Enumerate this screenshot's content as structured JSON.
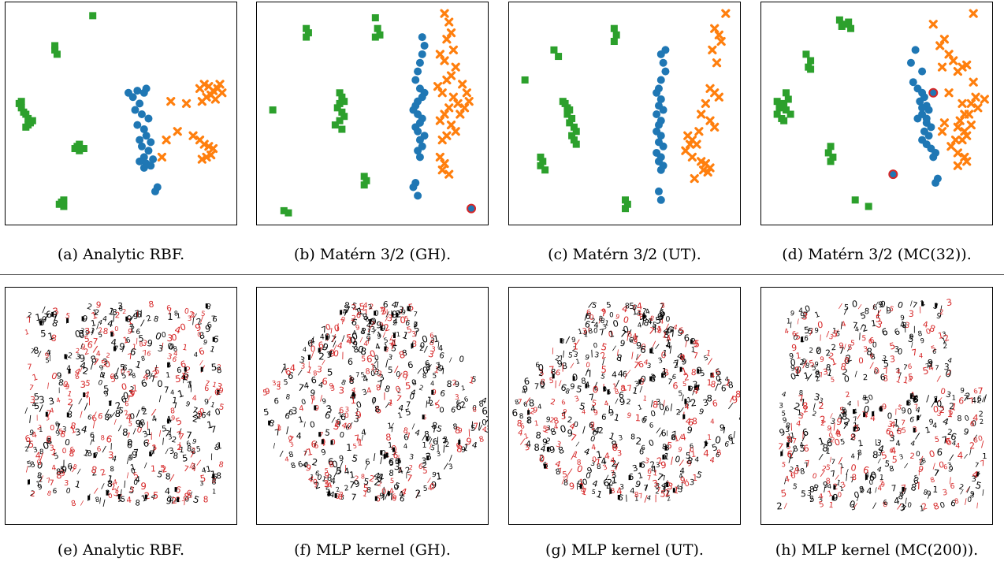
{
  "captions": {
    "a": "(a) Analytic RBF.",
    "b": "(b) Matérn 3/2 (GH).",
    "c": "(c) Matérn 3/2 (UT).",
    "d": "(d) Matérn 3/2 (MC(32)).",
    "e": "(e) Analytic RBF.",
    "f": "(f) MLP kernel (GH).",
    "g": "(g) MLP kernel (UT).",
    "h": "(h) MLP kernel (MC(200))."
  },
  "colors": {
    "green": "#2ca02c",
    "blue": "#1f77b4",
    "orange": "#ff7f0e",
    "red": "#d62728",
    "black": "#000000"
  },
  "chart_data": [
    {
      "type": "scatter",
      "panel": "a",
      "title": "",
      "xlabel": "",
      "ylabel": "",
      "xlim": [
        0,
        1
      ],
      "ylim": [
        0,
        1
      ],
      "series": [
        {
          "marker": "square",
          "color": "green",
          "x": [
            0.37,
            0.2,
            0.2,
            0.21,
            0.04,
            0.05,
            0.06,
            0.07,
            0.08,
            0.09,
            0.1,
            0.05,
            0.08,
            0.07,
            0.31,
            0.29,
            0.3,
            0.31,
            0.33,
            0.24,
            0.22,
            0.24,
            0.23
          ],
          "y": [
            0.96,
            0.82,
            0.8,
            0.78,
            0.55,
            0.53,
            0.51,
            0.5,
            0.48,
            0.46,
            0.47,
            0.56,
            0.45,
            0.44,
            0.36,
            0.34,
            0.35,
            0.33,
            0.34,
            0.1,
            0.08,
            0.07,
            0.09
          ]
        },
        {
          "marker": "circle",
          "color": "blue",
          "x": [
            0.53,
            0.55,
            0.57,
            0.6,
            0.61,
            0.58,
            0.56,
            0.59,
            0.62,
            0.57,
            0.6,
            0.61,
            0.58,
            0.63,
            0.59,
            0.62,
            0.6,
            0.58,
            0.61,
            0.64,
            0.6,
            0.63,
            0.66,
            0.65
          ],
          "y": [
            0.6,
            0.58,
            0.61,
            0.6,
            0.62,
            0.55,
            0.52,
            0.5,
            0.48,
            0.45,
            0.43,
            0.4,
            0.38,
            0.37,
            0.35,
            0.33,
            0.3,
            0.28,
            0.27,
            0.29,
            0.25,
            0.26,
            0.16,
            0.14
          ]
        },
        {
          "marker": "x",
          "color": "orange",
          "x": [
            0.85,
            0.87,
            0.89,
            0.91,
            0.93,
            0.95,
            0.88,
            0.9,
            0.92,
            0.86,
            0.94,
            0.79,
            0.72,
            0.75,
            0.82,
            0.85,
            0.87,
            0.89,
            0.91,
            0.88,
            0.9,
            0.86,
            0.68,
            0.7
          ],
          "y": [
            0.62,
            0.64,
            0.63,
            0.61,
            0.62,
            0.6,
            0.58,
            0.59,
            0.57,
            0.56,
            0.64,
            0.55,
            0.56,
            0.42,
            0.4,
            0.38,
            0.36,
            0.35,
            0.34,
            0.3,
            0.31,
            0.29,
            0.3,
            0.38
          ]
        }
      ]
    },
    {
      "type": "scatter",
      "panel": "b",
      "title": "",
      "xlabel": "",
      "ylabel": "",
      "xlim": [
        0,
        1
      ],
      "ylim": [
        0,
        1
      ],
      "series": [
        {
          "marker": "square",
          "color": "green",
          "x": [
            0.2,
            0.21,
            0.2,
            0.51,
            0.52,
            0.53,
            0.51,
            0.35,
            0.36,
            0.37,
            0.35,
            0.34,
            0.36,
            0.37,
            0.35,
            0.33,
            0.36,
            0.05,
            0.46,
            0.47,
            0.46,
            0.1,
            0.12
          ],
          "y": [
            0.9,
            0.88,
            0.86,
            0.95,
            0.9,
            0.87,
            0.86,
            0.6,
            0.58,
            0.56,
            0.55,
            0.53,
            0.51,
            0.49,
            0.47,
            0.45,
            0.43,
            0.52,
            0.21,
            0.19,
            0.17,
            0.05,
            0.04
          ]
        },
        {
          "marker": "circle",
          "color": "blue",
          "x": [
            0.72,
            0.73,
            0.72,
            0.71,
            0.7,
            0.69,
            0.71,
            0.73,
            0.72,
            0.7,
            0.69,
            0.68,
            0.7,
            0.72,
            0.71,
            0.69,
            0.7,
            0.73,
            0.71,
            0.72,
            0.7,
            0.71,
            0.69,
            0.68,
            0.7
          ],
          "y": [
            0.86,
            0.82,
            0.78,
            0.74,
            0.7,
            0.66,
            0.62,
            0.6,
            0.58,
            0.56,
            0.54,
            0.52,
            0.5,
            0.48,
            0.46,
            0.44,
            0.42,
            0.4,
            0.38,
            0.35,
            0.33,
            0.3,
            0.18,
            0.16,
            0.12
          ]
        },
        {
          "marker": "x",
          "color": "orange",
          "x": [
            0.82,
            0.84,
            0.85,
            0.83,
            0.86,
            0.8,
            0.82,
            0.87,
            0.85,
            0.83,
            0.79,
            0.81,
            0.86,
            0.88,
            0.84,
            0.82,
            0.8,
            0.85,
            0.87,
            0.83,
            0.81,
            0.9,
            0.92,
            0.93,
            0.91,
            0.89,
            0.8,
            0.82,
            0.81,
            0.84
          ],
          "y": [
            0.97,
            0.93,
            0.88,
            0.85,
            0.8,
            0.78,
            0.75,
            0.72,
            0.68,
            0.66,
            0.63,
            0.6,
            0.58,
            0.55,
            0.53,
            0.5,
            0.47,
            0.45,
            0.42,
            0.4,
            0.38,
            0.64,
            0.6,
            0.56,
            0.53,
            0.5,
            0.3,
            0.27,
            0.24,
            0.22
          ]
        },
        {
          "marker": "highlight",
          "color": "red",
          "x": [
            0.94
          ],
          "y": [
            0.06
          ]
        }
      ]
    },
    {
      "type": "scatter",
      "panel": "c",
      "title": "",
      "xlabel": "",
      "ylabel": "",
      "xlim": [
        0,
        1
      ],
      "ylim": [
        0,
        1
      ],
      "series": [
        {
          "marker": "square",
          "color": "green",
          "x": [
            0.45,
            0.46,
            0.45,
            0.18,
            0.2,
            0.05,
            0.22,
            0.23,
            0.24,
            0.25,
            0.24,
            0.26,
            0.25,
            0.27,
            0.28,
            0.26,
            0.27,
            0.28,
            0.12,
            0.13,
            0.12,
            0.14,
            0.5,
            0.51,
            0.5
          ],
          "y": [
            0.9,
            0.87,
            0.84,
            0.8,
            0.77,
            0.66,
            0.56,
            0.55,
            0.53,
            0.52,
            0.5,
            0.48,
            0.46,
            0.44,
            0.42,
            0.4,
            0.38,
            0.36,
            0.3,
            0.28,
            0.26,
            0.24,
            0.1,
            0.08,
            0.06
          ]
        },
        {
          "marker": "circle",
          "color": "blue",
          "x": [
            0.68,
            0.66,
            0.67,
            0.68,
            0.66,
            0.65,
            0.64,
            0.66,
            0.65,
            0.67,
            0.64,
            0.66,
            0.65,
            0.64,
            0.66,
            0.65,
            0.67,
            0.64,
            0.66,
            0.65,
            0.67,
            0.66,
            0.65,
            0.66
          ],
          "y": [
            0.8,
            0.78,
            0.74,
            0.7,
            0.66,
            0.62,
            0.6,
            0.57,
            0.54,
            0.52,
            0.5,
            0.47,
            0.45,
            0.42,
            0.4,
            0.37,
            0.35,
            0.32,
            0.3,
            0.28,
            0.26,
            0.24,
            0.14,
            0.1
          ]
        },
        {
          "marker": "x",
          "color": "orange",
          "x": [
            0.95,
            0.9,
            0.92,
            0.93,
            0.89,
            0.91,
            0.88,
            0.9,
            0.92,
            0.86,
            0.84,
            0.88,
            0.9,
            0.83,
            0.78,
            0.8,
            0.82,
            0.77,
            0.8,
            0.84,
            0.86,
            0.88,
            0.85,
            0.87,
            0.81,
            0.79
          ],
          "y": [
            0.97,
            0.9,
            0.87,
            0.84,
            0.8,
            0.74,
            0.62,
            0.6,
            0.58,
            0.55,
            0.5,
            0.47,
            0.44,
            0.42,
            0.4,
            0.38,
            0.36,
            0.33,
            0.3,
            0.28,
            0.27,
            0.25,
            0.24,
            0.23,
            0.2,
            0.36
          ]
        }
      ]
    },
    {
      "type": "scatter",
      "panel": "d",
      "title": "",
      "xlabel": "",
      "ylabel": "",
      "xlim": [
        0,
        1
      ],
      "ylim": [
        0,
        1
      ],
      "series": [
        {
          "marker": "square",
          "color": "green",
          "x": [
            0.33,
            0.35,
            0.34,
            0.37,
            0.38,
            0.18,
            0.2,
            0.19,
            0.2,
            0.05,
            0.06,
            0.07,
            0.08,
            0.09,
            0.1,
            0.11,
            0.07,
            0.08,
            0.05,
            0.09,
            0.29,
            0.28,
            0.3,
            0.29,
            0.4,
            0.46
          ],
          "y": [
            0.94,
            0.92,
            0.91,
            0.93,
            0.9,
            0.78,
            0.75,
            0.72,
            0.71,
            0.56,
            0.53,
            0.55,
            0.54,
            0.52,
            0.57,
            0.5,
            0.48,
            0.47,
            0.5,
            0.6,
            0.35,
            0.32,
            0.3,
            0.28,
            0.1,
            0.07
          ]
        },
        {
          "marker": "circle",
          "color": "blue",
          "x": [
            0.67,
            0.65,
            0.7,
            0.66,
            0.68,
            0.7,
            0.71,
            0.69,
            0.72,
            0.73,
            0.7,
            0.68,
            0.72,
            0.74,
            0.71,
            0.73,
            0.7,
            0.72,
            0.74,
            0.76,
            0.75,
            0.77,
            0.76,
            0.72,
            0.7
          ],
          "y": [
            0.8,
            0.74,
            0.7,
            0.65,
            0.62,
            0.6,
            0.58,
            0.56,
            0.54,
            0.52,
            0.5,
            0.48,
            0.46,
            0.44,
            0.42,
            0.4,
            0.38,
            0.36,
            0.34,
            0.32,
            0.3,
            0.2,
            0.18,
            0.48,
            0.53
          ]
        },
        {
          "marker": "x",
          "color": "orange",
          "x": [
            0.93,
            0.75,
            0.8,
            0.78,
            0.82,
            0.84,
            0.79,
            0.86,
            0.88,
            0.9,
            0.93,
            0.92,
            0.95,
            0.88,
            0.89,
            0.91,
            0.87,
            0.86,
            0.89,
            0.9,
            0.88,
            0.92,
            0.85,
            0.83,
            0.86,
            0.89,
            0.9,
            0.86,
            0.8,
            0.79,
            0.82,
            0.94,
            0.98
          ],
          "y": [
            0.97,
            0.92,
            0.85,
            0.82,
            0.78,
            0.75,
            0.72,
            0.7,
            0.72,
            0.73,
            0.65,
            0.55,
            0.53,
            0.55,
            0.5,
            0.5,
            0.47,
            0.44,
            0.42,
            0.4,
            0.38,
            0.45,
            0.38,
            0.35,
            0.32,
            0.3,
            0.28,
            0.26,
            0.46,
            0.42,
            0.6,
            0.58,
            0.57
          ]
        },
        {
          "marker": "highlight",
          "color": "red",
          "x": [
            0.75,
            0.57
          ],
          "y": [
            0.6,
            0.22
          ]
        }
      ]
    },
    {
      "type": "scatter",
      "panel": "e",
      "title": "",
      "xlabel": "",
      "ylabel": "",
      "xlim": [
        0,
        1
      ],
      "ylim": [
        0,
        1
      ],
      "series": [
        {
          "marker": "digit",
          "color": "black",
          "name": "",
          "spread": "square"
        },
        {
          "marker": "digit",
          "color": "red",
          "name": "",
          "spread": "square"
        }
      ]
    },
    {
      "type": "scatter",
      "panel": "f",
      "title": "",
      "xlabel": "",
      "ylabel": "",
      "xlim": [
        0,
        1
      ],
      "ylim": [
        0,
        1
      ],
      "series": [
        {
          "marker": "digit",
          "color": "black",
          "name": "",
          "spread": "fan"
        },
        {
          "marker": "digit",
          "color": "red",
          "name": "",
          "spread": "fan"
        }
      ]
    },
    {
      "type": "scatter",
      "panel": "g",
      "title": "",
      "xlabel": "",
      "ylabel": "",
      "xlim": [
        0,
        1
      ],
      "ylim": [
        0,
        1
      ],
      "series": [
        {
          "marker": "digit",
          "color": "black",
          "name": "",
          "spread": "fan"
        },
        {
          "marker": "digit",
          "color": "red",
          "name": "",
          "spread": "fan"
        }
      ]
    },
    {
      "type": "scatter",
      "panel": "h",
      "title": "",
      "xlabel": "",
      "ylabel": "",
      "xlim": [
        0,
        1
      ],
      "ylim": [
        0,
        1
      ],
      "series": [
        {
          "marker": "digit",
          "color": "black",
          "name": "",
          "spread": "split"
        },
        {
          "marker": "digit",
          "color": "red",
          "name": "",
          "spread": "split"
        }
      ]
    }
  ]
}
